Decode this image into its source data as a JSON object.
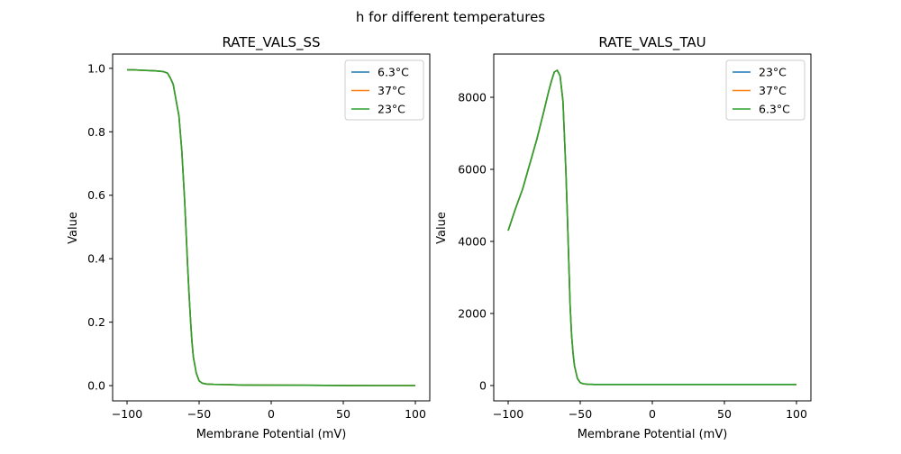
{
  "suptitle": "h for different temperatures",
  "chart_data": [
    {
      "type": "line",
      "title": "RATE_VALS_SS",
      "xlabel": "Membrane Potential (mV)",
      "ylabel": "Value",
      "xlim": [
        -110,
        110
      ],
      "ylim": [
        -0.048,
        1.045
      ],
      "xticks": [
        -100,
        -50,
        0,
        50,
        100
      ],
      "xtick_labels": [
        "−100",
        "−50",
        "0",
        "50",
        "100"
      ],
      "yticks": [
        0,
        0.2,
        0.4,
        0.6,
        0.8,
        1.0
      ],
      "ytick_labels": [
        "0.0",
        "0.2",
        "0.4",
        "0.6",
        "0.8",
        "1.0"
      ],
      "legend_position": "upper-right",
      "x": [
        -100,
        -95,
        -90,
        -85,
        -80,
        -75,
        -72,
        -70,
        -68,
        -66,
        -64,
        -62,
        -60,
        -59,
        -58,
        -57,
        -56,
        -55,
        -54,
        -52,
        -50,
        -48,
        -45,
        -40,
        -30,
        -20,
        0,
        25,
        50,
        75,
        100
      ],
      "series": [
        {
          "name": "6.3°C",
          "color": "#1f77b4",
          "values": [
            0.995,
            0.995,
            0.994,
            0.993,
            0.992,
            0.99,
            0.985,
            0.97,
            0.95,
            0.9,
            0.85,
            0.74,
            0.58,
            0.48,
            0.38,
            0.29,
            0.21,
            0.14,
            0.09,
            0.04,
            0.015,
            0.008,
            0.005,
            0.004,
            0.003,
            0.002,
            0.0015,
            0.001,
            0.0005,
            0.0003,
            0.0002
          ]
        },
        {
          "name": "37°C",
          "color": "#ff7f0e",
          "values": [
            0.995,
            0.995,
            0.994,
            0.993,
            0.992,
            0.99,
            0.985,
            0.97,
            0.95,
            0.9,
            0.85,
            0.74,
            0.58,
            0.48,
            0.38,
            0.29,
            0.21,
            0.14,
            0.09,
            0.04,
            0.015,
            0.008,
            0.005,
            0.004,
            0.003,
            0.002,
            0.0015,
            0.001,
            0.0005,
            0.0003,
            0.0002
          ]
        },
        {
          "name": "23°C",
          "color": "#2ca02c",
          "values": [
            0.995,
            0.995,
            0.994,
            0.993,
            0.992,
            0.99,
            0.985,
            0.97,
            0.95,
            0.9,
            0.85,
            0.74,
            0.58,
            0.48,
            0.38,
            0.29,
            0.21,
            0.14,
            0.09,
            0.04,
            0.015,
            0.008,
            0.005,
            0.004,
            0.003,
            0.002,
            0.0015,
            0.001,
            0.0005,
            0.0003,
            0.0002
          ]
        }
      ]
    },
    {
      "type": "line",
      "title": "RATE_VALS_TAU",
      "xlabel": "Membrane Potential (mV)",
      "ylabel": "Value",
      "xlim": [
        -110,
        110
      ],
      "ylim": [
        -425,
        9200
      ],
      "xticks": [
        -100,
        -50,
        0,
        50,
        100
      ],
      "xtick_labels": [
        "−100",
        "−50",
        "0",
        "50",
        "100"
      ],
      "yticks": [
        0,
        2000,
        4000,
        6000,
        8000
      ],
      "ytick_labels": [
        "0",
        "2000",
        "4000",
        "6000",
        "8000"
      ],
      "legend_position": "upper-right",
      "x": [
        -100,
        -95,
        -90,
        -85,
        -80,
        -75,
        -72,
        -70,
        -68,
        -66,
        -64,
        -62,
        -60,
        -59,
        -58,
        -57,
        -56,
        -55,
        -54,
        -52,
        -50,
        -48,
        -45,
        -40,
        -30,
        -20,
        0,
        25,
        50,
        75,
        100
      ],
      "series": [
        {
          "name": "23°C",
          "color": "#1f77b4",
          "values": [
            4300,
            4900,
            5450,
            6150,
            6850,
            7650,
            8150,
            8450,
            8700,
            8750,
            8600,
            7900,
            6000,
            4800,
            3500,
            2200,
            1400,
            900,
            550,
            200,
            80,
            50,
            35,
            30,
            30,
            30,
            30,
            30,
            30,
            30,
            30
          ]
        },
        {
          "name": "37°C",
          "color": "#ff7f0e",
          "values": [
            4300,
            4900,
            5450,
            6150,
            6850,
            7650,
            8150,
            8450,
            8700,
            8750,
            8600,
            7900,
            6000,
            4800,
            3500,
            2200,
            1400,
            900,
            550,
            200,
            80,
            50,
            35,
            30,
            30,
            30,
            30,
            30,
            30,
            30,
            30
          ]
        },
        {
          "name": "6.3°C",
          "color": "#2ca02c",
          "values": [
            4300,
            4900,
            5450,
            6150,
            6850,
            7650,
            8150,
            8450,
            8700,
            8750,
            8600,
            7900,
            6000,
            4800,
            3500,
            2200,
            1400,
            900,
            550,
            200,
            80,
            50,
            35,
            30,
            30,
            30,
            30,
            30,
            30,
            30,
            30
          ]
        }
      ]
    }
  ]
}
